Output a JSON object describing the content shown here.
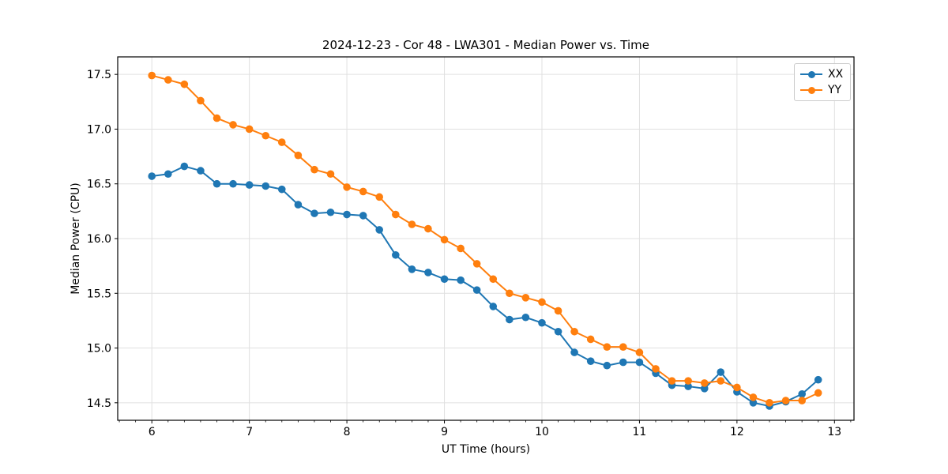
{
  "figure": {
    "title": "2024-12-23 - Cor 48 - LWA301 - Median Power vs. Time",
    "xlabel": "UT Time (hours)",
    "ylabel": "Median Power (CPU)"
  },
  "legend": {
    "items": [
      {
        "label": "XX",
        "color": "#1f77b4"
      },
      {
        "label": "YY",
        "color": "#ff7f0e"
      }
    ]
  },
  "chart_data": {
    "type": "line",
    "title": "2024-12-23 - Cor 48 - LWA301 - Median Power vs. Time",
    "xlabel": "UT Time (hours)",
    "ylabel": "Median Power (CPU)",
    "xlim": [
      5.65,
      13.2
    ],
    "ylim": [
      14.34,
      17.66
    ],
    "x_ticks": [
      6,
      7,
      8,
      9,
      10,
      11,
      12,
      13
    ],
    "y_ticks": [
      14.5,
      15.0,
      15.5,
      16.0,
      16.5,
      17.0,
      17.5
    ],
    "x_minor_interval": 0.1667,
    "grid": true,
    "grid_color": "#e0e0e0",
    "legend_position": "upper right",
    "marker": "o",
    "x": [
      6.0,
      6.167,
      6.333,
      6.5,
      6.667,
      6.833,
      7.0,
      7.167,
      7.333,
      7.5,
      7.667,
      7.833,
      8.0,
      8.167,
      8.333,
      8.5,
      8.667,
      8.833,
      9.0,
      9.167,
      9.333,
      9.5,
      9.667,
      9.833,
      10.0,
      10.167,
      10.333,
      10.5,
      10.667,
      10.833,
      11.0,
      11.167,
      11.333,
      11.5,
      11.667,
      11.833,
      12.0,
      12.167,
      12.333,
      12.5,
      12.667,
      12.833
    ],
    "series": [
      {
        "name": "XX",
        "color": "#1f77b4",
        "values": [
          16.57,
          16.59,
          16.66,
          16.62,
          16.5,
          16.5,
          16.49,
          16.48,
          16.45,
          16.31,
          16.23,
          16.24,
          16.22,
          16.21,
          16.08,
          15.85,
          15.72,
          15.69,
          15.63,
          15.62,
          15.53,
          15.38,
          15.26,
          15.28,
          15.23,
          15.15,
          14.96,
          14.88,
          14.84,
          14.87,
          14.87,
          14.77,
          14.66,
          14.65,
          14.63,
          14.78,
          14.6,
          14.5,
          14.47,
          14.51,
          14.58,
          14.71
        ]
      },
      {
        "name": "YY",
        "color": "#ff7f0e",
        "values": [
          17.49,
          17.45,
          17.41,
          17.26,
          17.1,
          17.04,
          17.0,
          16.94,
          16.88,
          16.76,
          16.63,
          16.59,
          16.47,
          16.43,
          16.38,
          16.22,
          16.13,
          16.09,
          15.99,
          15.91,
          15.77,
          15.63,
          15.5,
          15.46,
          15.42,
          15.34,
          15.15,
          15.08,
          15.01,
          15.01,
          14.96,
          14.81,
          14.7,
          14.7,
          14.68,
          14.7,
          14.64,
          14.55,
          14.5,
          14.52,
          14.52,
          14.59
        ]
      }
    ]
  }
}
